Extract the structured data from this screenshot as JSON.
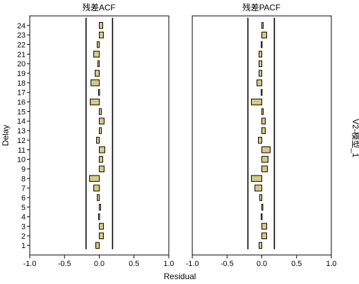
{
  "chart_data": {
    "type": "bar",
    "orientation": "horizontal",
    "xlabel": "Residual",
    "ylabel": "Delay",
    "row_label": "V2-模型_1",
    "xlim": [
      -1.0,
      1.0
    ],
    "ylim": [
      0,
      25
    ],
    "x_ticks": [
      "-1.0",
      "-0.5",
      "0.0",
      "0.5",
      "1.0"
    ],
    "categories": [
      "1",
      "2",
      "3",
      "4",
      "5",
      "6",
      "7",
      "8",
      "9",
      "10",
      "11",
      "12",
      "13",
      "14",
      "15",
      "16",
      "17",
      "18",
      "19",
      "20",
      "21",
      "22",
      "23",
      "24"
    ],
    "bar_color": "#d6c984",
    "panels": [
      {
        "title": "残差ACF",
        "values": [
          -0.05,
          0.06,
          0.06,
          -0.01,
          0.02,
          -0.03,
          -0.08,
          -0.14,
          0.07,
          0.05,
          0.08,
          -0.04,
          0.03,
          0.07,
          0.03,
          -0.13,
          -0.01,
          -0.12,
          -0.06,
          -0.02,
          -0.08,
          -0.03,
          0.06,
          0.05
        ],
        "confidence_limit": [
          0.19,
          0.19
        ]
      },
      {
        "title": "残差PACF",
        "values": [
          -0.04,
          0.07,
          0.07,
          -0.01,
          0.01,
          -0.03,
          -0.1,
          -0.15,
          0.08,
          0.09,
          0.12,
          -0.05,
          0.05,
          0.05,
          0.02,
          -0.15,
          -0.01,
          -0.07,
          -0.04,
          -0.04,
          -0.04,
          -0.01,
          0.07,
          0.02
        ],
        "confidence_limit": [
          0.2,
          0.18
        ]
      }
    ]
  }
}
